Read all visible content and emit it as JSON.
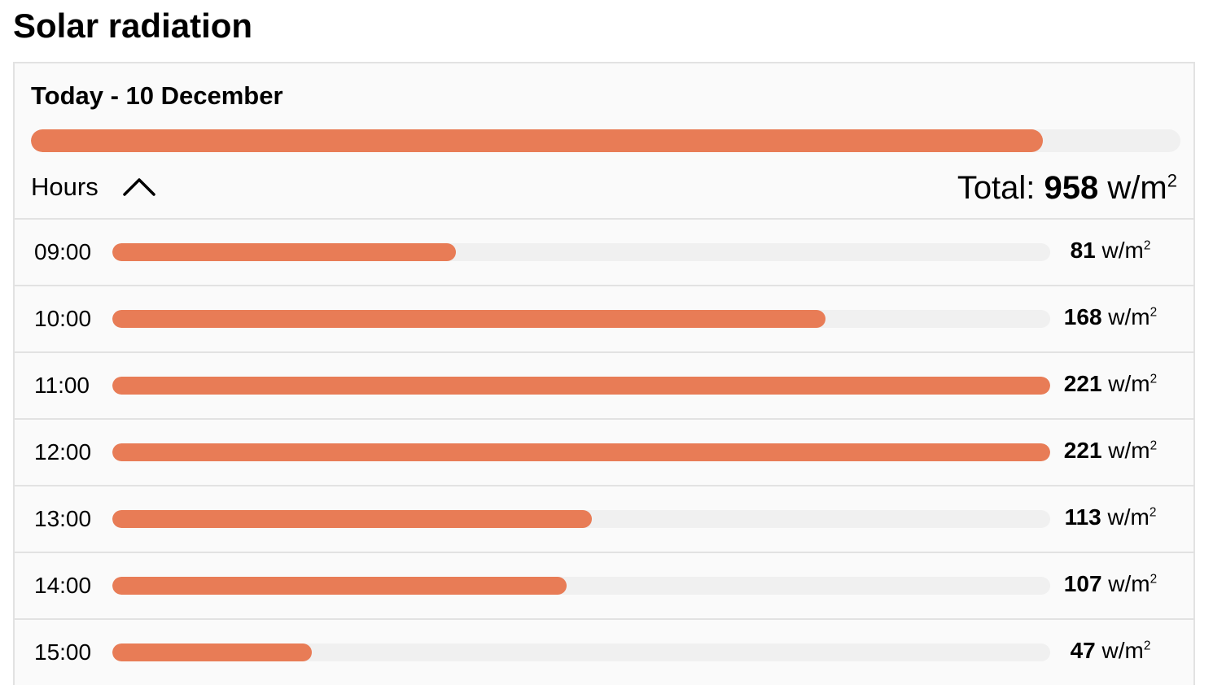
{
  "page": {
    "title": "Solar radiation"
  },
  "day": {
    "title": "Today - 10 December",
    "fill_fraction": 0.88,
    "hours_label": "Hours",
    "toggle_icon": "chevron-up-icon",
    "total_label": "Total:",
    "total_value": "958",
    "unit": "w/m",
    "unit_exp": "2"
  },
  "colors": {
    "accent": "#e87c56",
    "track": "#f0f0f0"
  },
  "hours": [
    {
      "time": "09:00",
      "value": "81",
      "unit": "w/m",
      "unit_exp": "2",
      "fill_fraction": 0.366
    },
    {
      "time": "10:00",
      "value": "168",
      "unit": "w/m",
      "unit_exp": "2",
      "fill_fraction": 0.76
    },
    {
      "time": "11:00",
      "value": "221",
      "unit": "w/m",
      "unit_exp": "2",
      "fill_fraction": 1.0
    },
    {
      "time": "12:00",
      "value": "221",
      "unit": "w/m",
      "unit_exp": "2",
      "fill_fraction": 1.0
    },
    {
      "time": "13:00",
      "value": "113",
      "unit": "w/m",
      "unit_exp": "2",
      "fill_fraction": 0.511
    },
    {
      "time": "14:00",
      "value": "107",
      "unit": "w/m",
      "unit_exp": "2",
      "fill_fraction": 0.484
    },
    {
      "time": "15:00",
      "value": "47",
      "unit": "w/m",
      "unit_exp": "2",
      "fill_fraction": 0.213
    }
  ]
}
